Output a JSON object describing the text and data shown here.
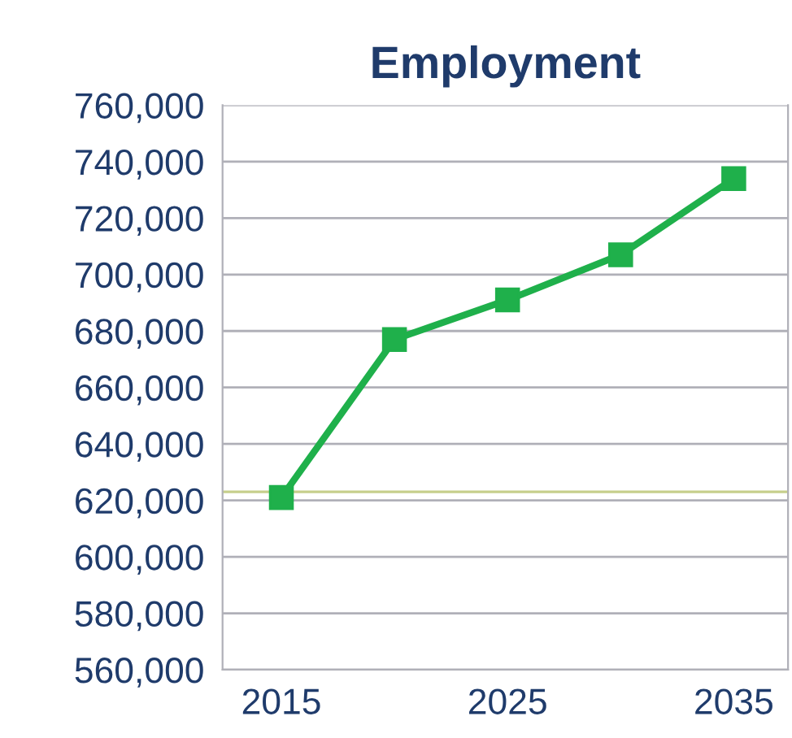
{
  "chart_data": {
    "type": "line",
    "title": "Employment",
    "x": [
      2015,
      2020,
      2025,
      2030,
      2035
    ],
    "series": [
      {
        "color": "#1fb04b",
        "values": [
          621000,
          677000,
          691000,
          707000,
          734000
        ]
      }
    ],
    "xlim": [
      2012.4,
      2037.4
    ],
    "xticks": [
      2015,
      2025,
      2035
    ],
    "ylim": [
      560000,
      760000
    ],
    "yticks": [
      {
        "value": 560000,
        "label": "560,000"
      },
      {
        "value": 580000,
        "label": "580,000"
      },
      {
        "value": 600000,
        "label": "600,000"
      },
      {
        "value": 620000,
        "label": "620,000"
      },
      {
        "value": 640000,
        "label": "640,000"
      },
      {
        "value": 660000,
        "label": "660,000"
      },
      {
        "value": 680000,
        "label": "680,000"
      },
      {
        "value": 700000,
        "label": "700,000"
      },
      {
        "value": 720000,
        "label": "720,000"
      },
      {
        "value": 740000,
        "label": "740,000"
      },
      {
        "value": 760000,
        "label": "760,000"
      }
    ],
    "ref_lines": [
      {
        "axis": "y",
        "value": 623000,
        "color": "#c6cf8c"
      }
    ],
    "grid": "y",
    "marker": "square",
    "line_style": "solid"
  }
}
